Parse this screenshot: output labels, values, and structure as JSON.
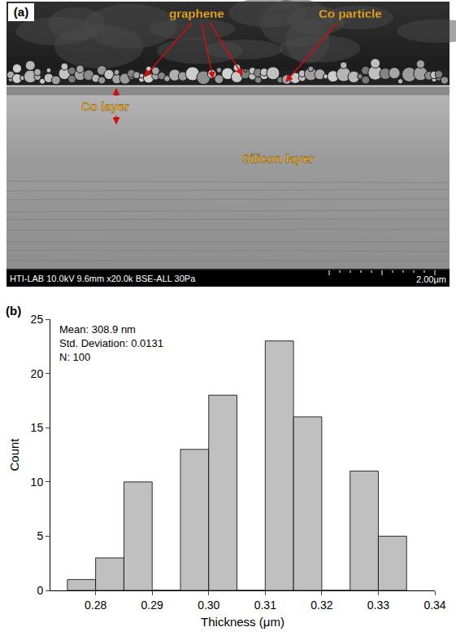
{
  "image_panel": {
    "label": "(a)",
    "labels": {
      "graphene": "graphene",
      "co_particle": "Co particle",
      "co_layer": "Co layer",
      "silicon_layer": "Silicon layer"
    },
    "info_bar": "HTI-LAB 10.0kV 9.6mm x20.0k BSE-ALL 30Pa",
    "scale_bar": "2.00μm"
  },
  "chart_data": {
    "type": "histogram",
    "label": "(b)",
    "bins": [
      0.275,
      0.28,
      0.285,
      0.29,
      0.295,
      0.3,
      0.305,
      0.31,
      0.315,
      0.32,
      0.325,
      0.33,
      0.335
    ],
    "counts": [
      1,
      3,
      10,
      0,
      13,
      18,
      0,
      23,
      16,
      0,
      11,
      5
    ],
    "color": "#c0c0c0",
    "xlabel": "Thickness (μm)",
    "ylabel": "Count",
    "xlim": [
      0.272,
      0.34
    ],
    "xticks": [
      0.28,
      0.29,
      {
        "value": 0.3,
        "label": "0.30"
      },
      0.31,
      0.32,
      0.33,
      0.34
    ],
    "ylim": [
      0,
      25
    ],
    "yticks": [
      0,
      5,
      10,
      15,
      20,
      25
    ],
    "annotations": [
      "Mean: 308.9 nm",
      "Std. Deviation: 0.0131",
      "N: 100"
    ],
    "grid": false
  }
}
